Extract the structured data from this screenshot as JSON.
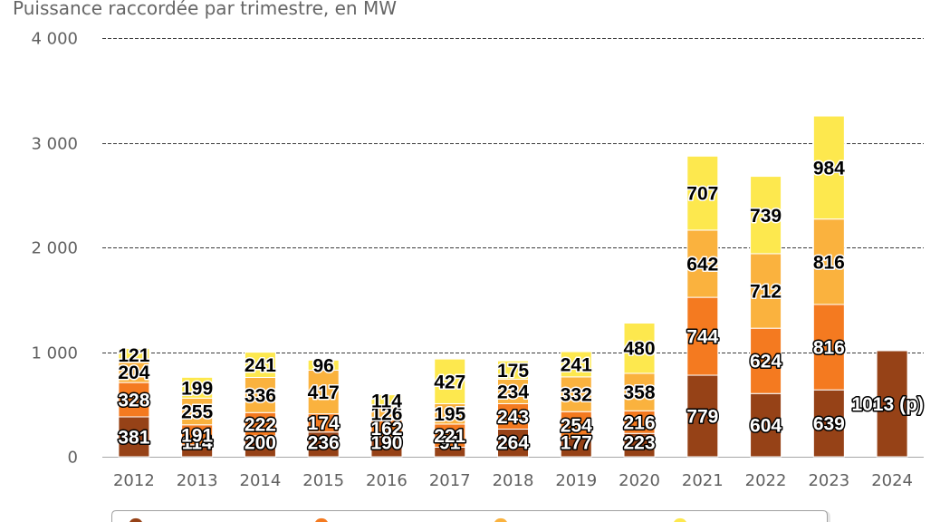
{
  "chart_data": {
    "type": "bar",
    "stacked": true,
    "title": "Puissance raccordée par trimestre, en MW",
    "categories": [
      "2012",
      "2013",
      "2014",
      "2015",
      "2016",
      "2017",
      "2018",
      "2019",
      "2020",
      "2021",
      "2022",
      "2023",
      "2024"
    ],
    "series": [
      {
        "color": "#964217",
        "label_color": "#ffffff",
        "label_outline": "#000000",
        "values": [
          381,
          114,
          200,
          236,
          190,
          91,
          264,
          177,
          223,
          779,
          604,
          639,
          1013
        ]
      },
      {
        "color": "#f47a20",
        "label_color": "#ffffff",
        "label_outline": "#000000",
        "values": [
          328,
          191,
          222,
          174,
          162,
          221,
          243,
          254,
          216,
          744,
          624,
          816,
          null
        ]
      },
      {
        "color": "#fab23e",
        "label_color": "#000000",
        "label_outline": "#ffffff",
        "values": [
          204,
          255,
          336,
          417,
          126,
          195,
          234,
          332,
          358,
          642,
          712,
          816,
          null
        ]
      },
      {
        "color": "#fde84e",
        "label_color": "#000000",
        "label_outline": "#ffffff",
        "values": [
          121,
          199,
          241,
          96,
          114,
          427,
          175,
          241,
          480,
          707,
          739,
          984,
          null
        ]
      }
    ],
    "ylim": [
      0,
      4000
    ],
    "yticks": [
      0,
      1000,
      2000,
      3000,
      4000
    ],
    "ytick_labels": [
      "0",
      "1 000",
      "2 000",
      "3 000",
      "4 000"
    ],
    "grid": true,
    "data_labels": true,
    "provisional_categories": [
      "2024"
    ],
    "provisional_marker": "(p)",
    "legend": {
      "position": "bottom"
    }
  }
}
